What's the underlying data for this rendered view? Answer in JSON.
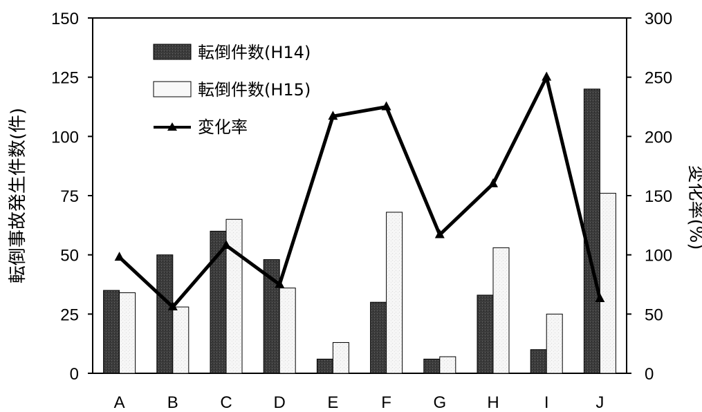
{
  "chart_data": {
    "type": "bar",
    "categories": [
      "A",
      "B",
      "C",
      "D",
      "E",
      "F",
      "G",
      "H",
      "I",
      "J"
    ],
    "series": [
      {
        "name": "転倒件数(H14)",
        "type": "bar",
        "axis": "left",
        "color": "#404040",
        "values": [
          35,
          50,
          60,
          48,
          6,
          30,
          6,
          33,
          10,
          120
        ]
      },
      {
        "name": "転倒件数(H15)",
        "type": "bar",
        "axis": "left",
        "color": "#f4f4f4",
        "values": [
          34,
          28,
          65,
          36,
          13,
          68,
          7,
          53,
          25,
          76
        ]
      },
      {
        "name": "変化率",
        "type": "line",
        "axis": "right",
        "color": "#000000",
        "values": [
          98,
          56,
          108,
          75,
          217,
          225,
          117,
          160,
          250,
          63
        ]
      }
    ],
    "ylabel_left": "転倒事故発生件数(件)",
    "ylabel_right": "変化率(%)",
    "ylim_left": [
      0,
      150
    ],
    "ylim_right": [
      0,
      300
    ],
    "yticks_left": [
      "0",
      "25",
      "50",
      "75",
      "100",
      "125",
      "150"
    ],
    "yticks_right": [
      "0",
      "50",
      "100",
      "150",
      "200",
      "250",
      "300"
    ],
    "legend_position": "top-left",
    "grid": false
  }
}
